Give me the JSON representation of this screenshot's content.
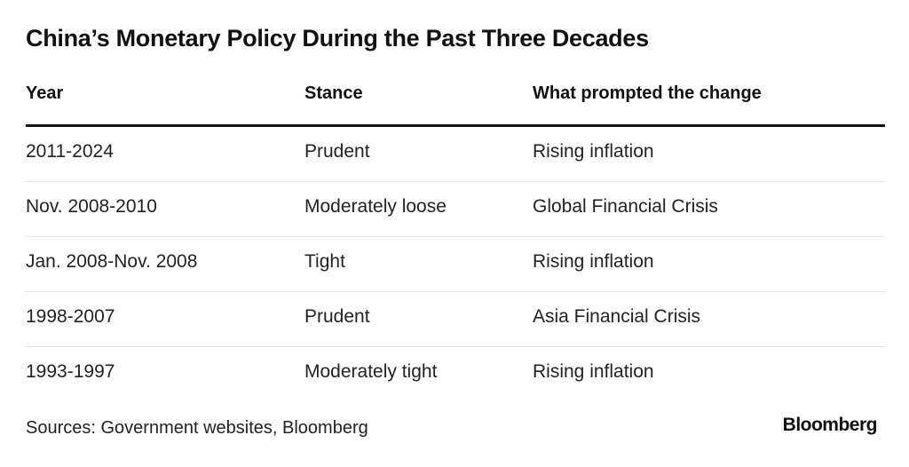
{
  "title": "China’s Monetary Policy During the Past Three Decades",
  "headers": {
    "year": "Year",
    "stance": "Stance",
    "prompt": "What prompted the change"
  },
  "rows": [
    {
      "year": "2011-2024",
      "stance": "Prudent",
      "prompt": "Rising inflation"
    },
    {
      "year": "Nov. 2008-2010",
      "stance": "Moderately loose",
      "prompt": "Global Financial Crisis"
    },
    {
      "year": "Jan. 2008-Nov. 2008",
      "stance": "Tight",
      "prompt": "Rising inflation"
    },
    {
      "year": "1998-2007",
      "stance": "Prudent",
      "prompt": "Asia Financial Crisis"
    },
    {
      "year": "1993-1997",
      "stance": "Moderately tight",
      "prompt": "Rising inflation"
    }
  ],
  "footer": {
    "sources": "Sources: Government websites, Bloomberg",
    "brand": "Bloomberg"
  }
}
